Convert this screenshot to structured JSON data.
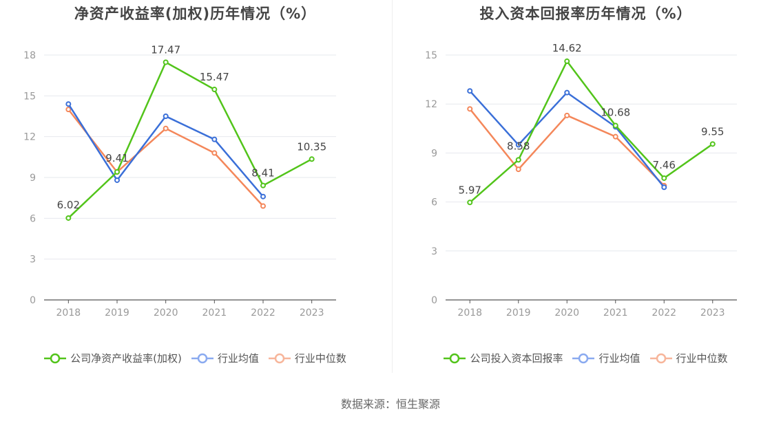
{
  "source_label": "数据来源：恒生聚源",
  "colors": {
    "company": "#52c41a",
    "industry_avg": "#3a6fd8",
    "industry_median": "#f4875a",
    "legend_avg": "#8aaaf0",
    "legend_median": "#f7b59a",
    "axis_text": "#999999",
    "grid": "#e6e8ee",
    "label_text": "#444444"
  },
  "chart_data": [
    {
      "type": "line",
      "title": "净资产收益率(加权)历年情况（%）",
      "categories": [
        "2018",
        "2019",
        "2020",
        "2021",
        "2022",
        "2023"
      ],
      "ylim": [
        0,
        18
      ],
      "yticks": [
        0,
        3,
        6,
        9,
        12,
        15,
        18
      ],
      "grid": true,
      "legend_position": "bottom",
      "series": [
        {
          "name": "公司净资产收益率(加权)",
          "key": "company",
          "values": [
            6.02,
            9.41,
            17.47,
            15.47,
            8.41,
            10.35
          ],
          "labels": [
            "6.02",
            "9.41",
            "17.47",
            "15.47",
            "8.41",
            "10.35"
          ]
        },
        {
          "name": "行业均值",
          "key": "industry_avg",
          "values": [
            14.4,
            8.8,
            13.5,
            11.8,
            7.6,
            null
          ]
        },
        {
          "name": "行业中位数",
          "key": "industry_median",
          "values": [
            14.0,
            9.4,
            12.6,
            10.8,
            6.9,
            null
          ]
        }
      ]
    },
    {
      "type": "line",
      "title": "投入资本回报率历年情况（%）",
      "categories": [
        "2018",
        "2019",
        "2020",
        "2021",
        "2022",
        "2023"
      ],
      "ylim": [
        0,
        15
      ],
      "yticks": [
        0,
        3,
        6,
        9,
        12,
        15
      ],
      "grid": true,
      "legend_position": "bottom",
      "series": [
        {
          "name": "公司投入资本回报率",
          "key": "company",
          "values": [
            5.97,
            8.58,
            14.62,
            10.68,
            7.46,
            9.55
          ],
          "labels": [
            "5.97",
            "8.58",
            "14.62",
            "10.68",
            "7.46",
            "9.55"
          ]
        },
        {
          "name": "行业均值",
          "key": "industry_avg",
          "values": [
            12.8,
            9.5,
            12.7,
            10.6,
            6.9,
            null
          ]
        },
        {
          "name": "行业中位数",
          "key": "industry_median",
          "values": [
            11.7,
            8.0,
            11.3,
            10.0,
            7.0,
            null
          ]
        }
      ]
    }
  ]
}
